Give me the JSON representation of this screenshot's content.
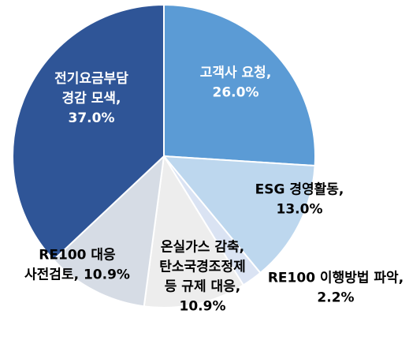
{
  "chart_data": {
    "type": "pie",
    "title": "",
    "start_angle_deg": 0,
    "direction": "clockwise",
    "slices": [
      {
        "label_lines": [
          "고객사 요청,",
          "26.0%"
        ],
        "category": "고객사 요청",
        "value": 26.0,
        "color": "#5b9bd5",
        "text_color": "#ffffff"
      },
      {
        "label_lines": [
          "ESG 경영활동,",
          "13.0%"
        ],
        "category": "ESG 경영활동",
        "value": 13.0,
        "color": "#bdd7ee",
        "text_color": "#000000"
      },
      {
        "label_lines": [
          "RE100 이행방법 파악,",
          "2.2%"
        ],
        "category": "RE100 이행방법 파악",
        "value": 2.2,
        "color": "#dae3f3",
        "text_color": "#000000"
      },
      {
        "label_lines": [
          "온실가스 감축,",
          "탄소국경조정제",
          "등 규제 대응,",
          "10.9%"
        ],
        "category": "온실가스 감축, 탄소국경조정제 등 규제 대응",
        "value": 10.9,
        "color": "#ededed",
        "text_color": "#000000"
      },
      {
        "label_lines": [
          "RE100 대응",
          "사전검토, 10.9%"
        ],
        "category": "RE100 대응 사전검토",
        "value": 10.9,
        "color": "#d6dce5",
        "text_color": "#000000"
      },
      {
        "label_lines": [
          "전기요금부담",
          "경감 모색,",
          "37.0%"
        ],
        "category": "전기요금부담 경감 모색",
        "value": 37.0,
        "color": "#2f5597",
        "text_color": "#ffffff"
      }
    ]
  }
}
